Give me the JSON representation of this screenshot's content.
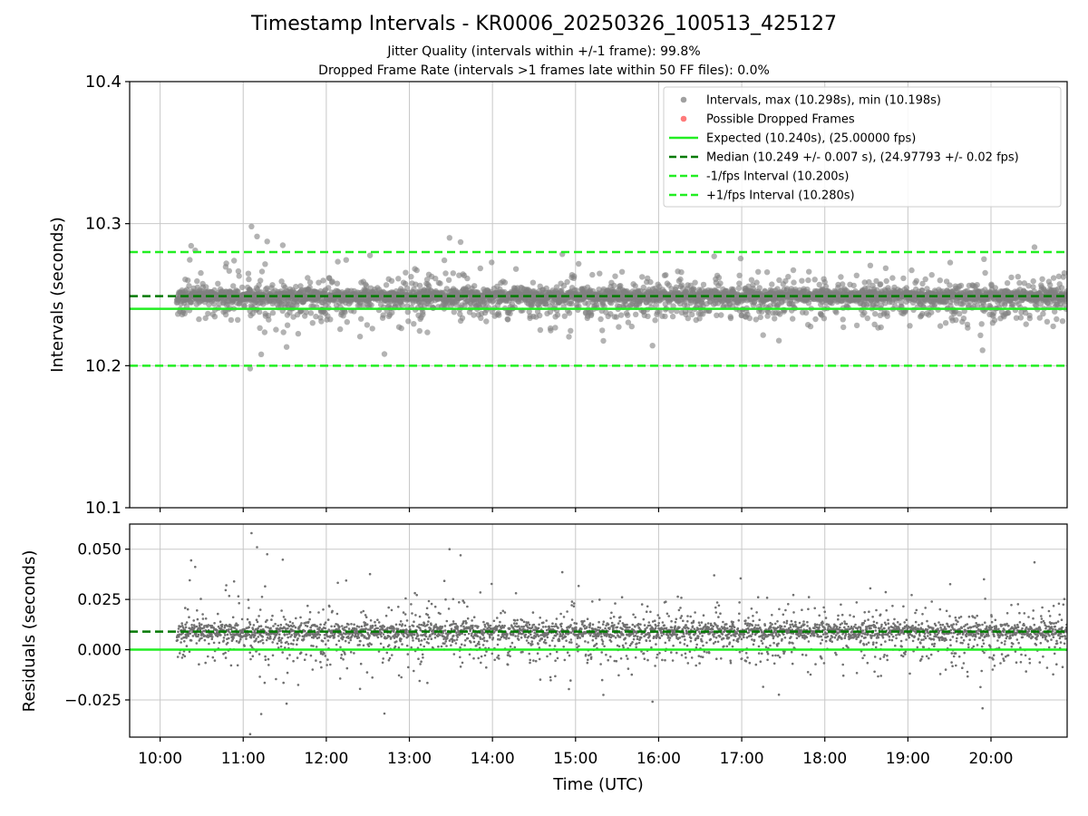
{
  "title": "Timestamp Intervals - KR0006_20250326_100513_425127",
  "subtitle_jitter": "Jitter Quality (intervals within +/-1 frame): 99.8%",
  "subtitle_dropped": "Dropped Frame Rate (intervals >1 frames late within 50 FF files): 0.0%",
  "colors": {
    "points": "#808080",
    "dropped": "#ff4d4d",
    "expected": "#22ee22",
    "median": "#007a00",
    "fps_interval": "#22ee22",
    "grid": "#c8c8c8"
  },
  "chart_data": [
    {
      "type": "scatter",
      "panel": "top",
      "ylabel": "Intervals (seconds)",
      "ylim": [
        10.1,
        10.4
      ],
      "yticks": [
        "10.1",
        "10.2",
        "10.3",
        "10.4"
      ],
      "yticks_values": [
        10.1,
        10.2,
        10.3,
        10.4
      ],
      "xlim": [
        "09:38",
        "20:55"
      ],
      "grid": true,
      "legend_position": "top-right",
      "legend": [
        {
          "label": "Intervals, max (10.298s), min (10.198s)",
          "kind": "point",
          "key": "points"
        },
        {
          "label": "Possible Dropped Frames",
          "kind": "point",
          "key": "dropped"
        },
        {
          "label": "Expected (10.240s), (25.00000 fps)",
          "kind": "solid",
          "key": "expected"
        },
        {
          "label": "Median (10.249 +/- 0.007 s), (24.97793 +/- 0.02 fps)",
          "kind": "dashed",
          "key": "median"
        },
        {
          "label": "-1/fps Interval (10.200s)",
          "kind": "dashed",
          "key": "fps_interval"
        },
        {
          "label": "+1/fps Interval (10.280s)",
          "kind": "dashed",
          "key": "fps_interval"
        }
      ],
      "reference_lines": {
        "expected": 10.24,
        "median": 10.249,
        "minus_fps": 10.2,
        "plus_fps": 10.28
      },
      "series": [
        {
          "name": "Intervals",
          "time_start": "10:12",
          "time_end": "20:55",
          "count": 3770,
          "median": 10.249,
          "spread": 0.007,
          "max": 10.298,
          "min": 10.198
        }
      ]
    },
    {
      "type": "scatter",
      "panel": "bottom",
      "ylabel": "Residuals (seconds)",
      "xlabel": "Time (UTC)",
      "ylim": [
        -0.0435,
        0.0625
      ],
      "yticks": [
        "−0.025",
        "0.000",
        "0.025",
        "0.050"
      ],
      "yticks_values": [
        -0.025,
        0.0,
        0.025,
        0.05
      ],
      "xlim": [
        "09:38",
        "20:55"
      ],
      "xticks": [
        "10:00",
        "11:00",
        "12:00",
        "13:00",
        "14:00",
        "15:00",
        "16:00",
        "17:00",
        "18:00",
        "19:00",
        "20:00"
      ],
      "grid": true,
      "reference_lines": {
        "zero": 0.0,
        "median_residual": 0.009
      },
      "series": [
        {
          "name": "Residuals",
          "max": 0.058,
          "min": -0.042
        }
      ]
    }
  ]
}
